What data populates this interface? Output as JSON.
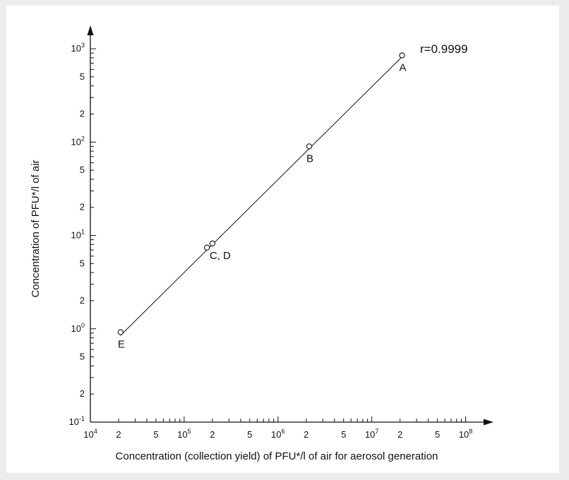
{
  "chart_data": {
    "type": "scatter",
    "xscale": "log",
    "yscale": "log",
    "xlabel": "Concentration (collection yield) of PFU*/l of air for aerosol generation",
    "ylabel": "Concentration of PFU*/l of air",
    "xlim": [
      10000,
      140000000
    ],
    "ylim": [
      0.1,
      1300
    ],
    "grid": false,
    "annotation": "r=0.9999",
    "x_ticks": [
      {
        "value": 10000,
        "base": "10",
        "exp": "4"
      },
      {
        "value": 20000,
        "base": "2",
        "exp": ""
      },
      {
        "value": 50000,
        "base": "5",
        "exp": ""
      },
      {
        "value": 100000,
        "base": "10",
        "exp": "5"
      },
      {
        "value": 200000,
        "base": "2",
        "exp": ""
      },
      {
        "value": 500000,
        "base": "5",
        "exp": ""
      },
      {
        "value": 1000000,
        "base": "10",
        "exp": "6"
      },
      {
        "value": 2000000,
        "base": "2",
        "exp": ""
      },
      {
        "value": 5000000,
        "base": "5",
        "exp": ""
      },
      {
        "value": 10000000,
        "base": "10",
        "exp": "7"
      },
      {
        "value": 20000000,
        "base": "2",
        "exp": ""
      },
      {
        "value": 50000000,
        "base": "5",
        "exp": ""
      },
      {
        "value": 100000000,
        "base": "10",
        "exp": "8"
      }
    ],
    "y_ticks": [
      {
        "value": 0.1,
        "base": "10",
        "exp": "-1"
      },
      {
        "value": 0.2,
        "base": "2",
        "exp": ""
      },
      {
        "value": 0.5,
        "base": "5",
        "exp": ""
      },
      {
        "value": 1,
        "base": "10",
        "exp": "0"
      },
      {
        "value": 2,
        "base": "2",
        "exp": ""
      },
      {
        "value": 5,
        "base": "5",
        "exp": ""
      },
      {
        "value": 10,
        "base": "10",
        "exp": "1"
      },
      {
        "value": 20,
        "base": "2",
        "exp": ""
      },
      {
        "value": 50,
        "base": "5",
        "exp": ""
      },
      {
        "value": 100,
        "base": "10",
        "exp": "2"
      },
      {
        "value": 200,
        "base": "2",
        "exp": ""
      },
      {
        "value": 500,
        "base": "5",
        "exp": ""
      },
      {
        "value": 1000,
        "base": "10",
        "exp": "3"
      }
    ],
    "points": [
      {
        "label": "A",
        "x": 21000000,
        "y": 850
      },
      {
        "label": "B",
        "x": 2150000,
        "y": 90
      },
      {
        "label": "C",
        "x": 175000,
        "y": 7.4
      },
      {
        "label": "D",
        "x": 200000,
        "y": 8.2
      },
      {
        "label": "E",
        "x": 21000,
        "y": 0.92
      }
    ],
    "point_labels": [
      {
        "text": "A",
        "anchor": "A"
      },
      {
        "text": "B",
        "anchor": "B"
      },
      {
        "text": "C, D",
        "anchor": "D"
      },
      {
        "text": "E",
        "anchor": "E"
      }
    ],
    "fit_line": {
      "x": [
        21000,
        21000000
      ],
      "y": [
        0.85,
        820
      ]
    }
  }
}
